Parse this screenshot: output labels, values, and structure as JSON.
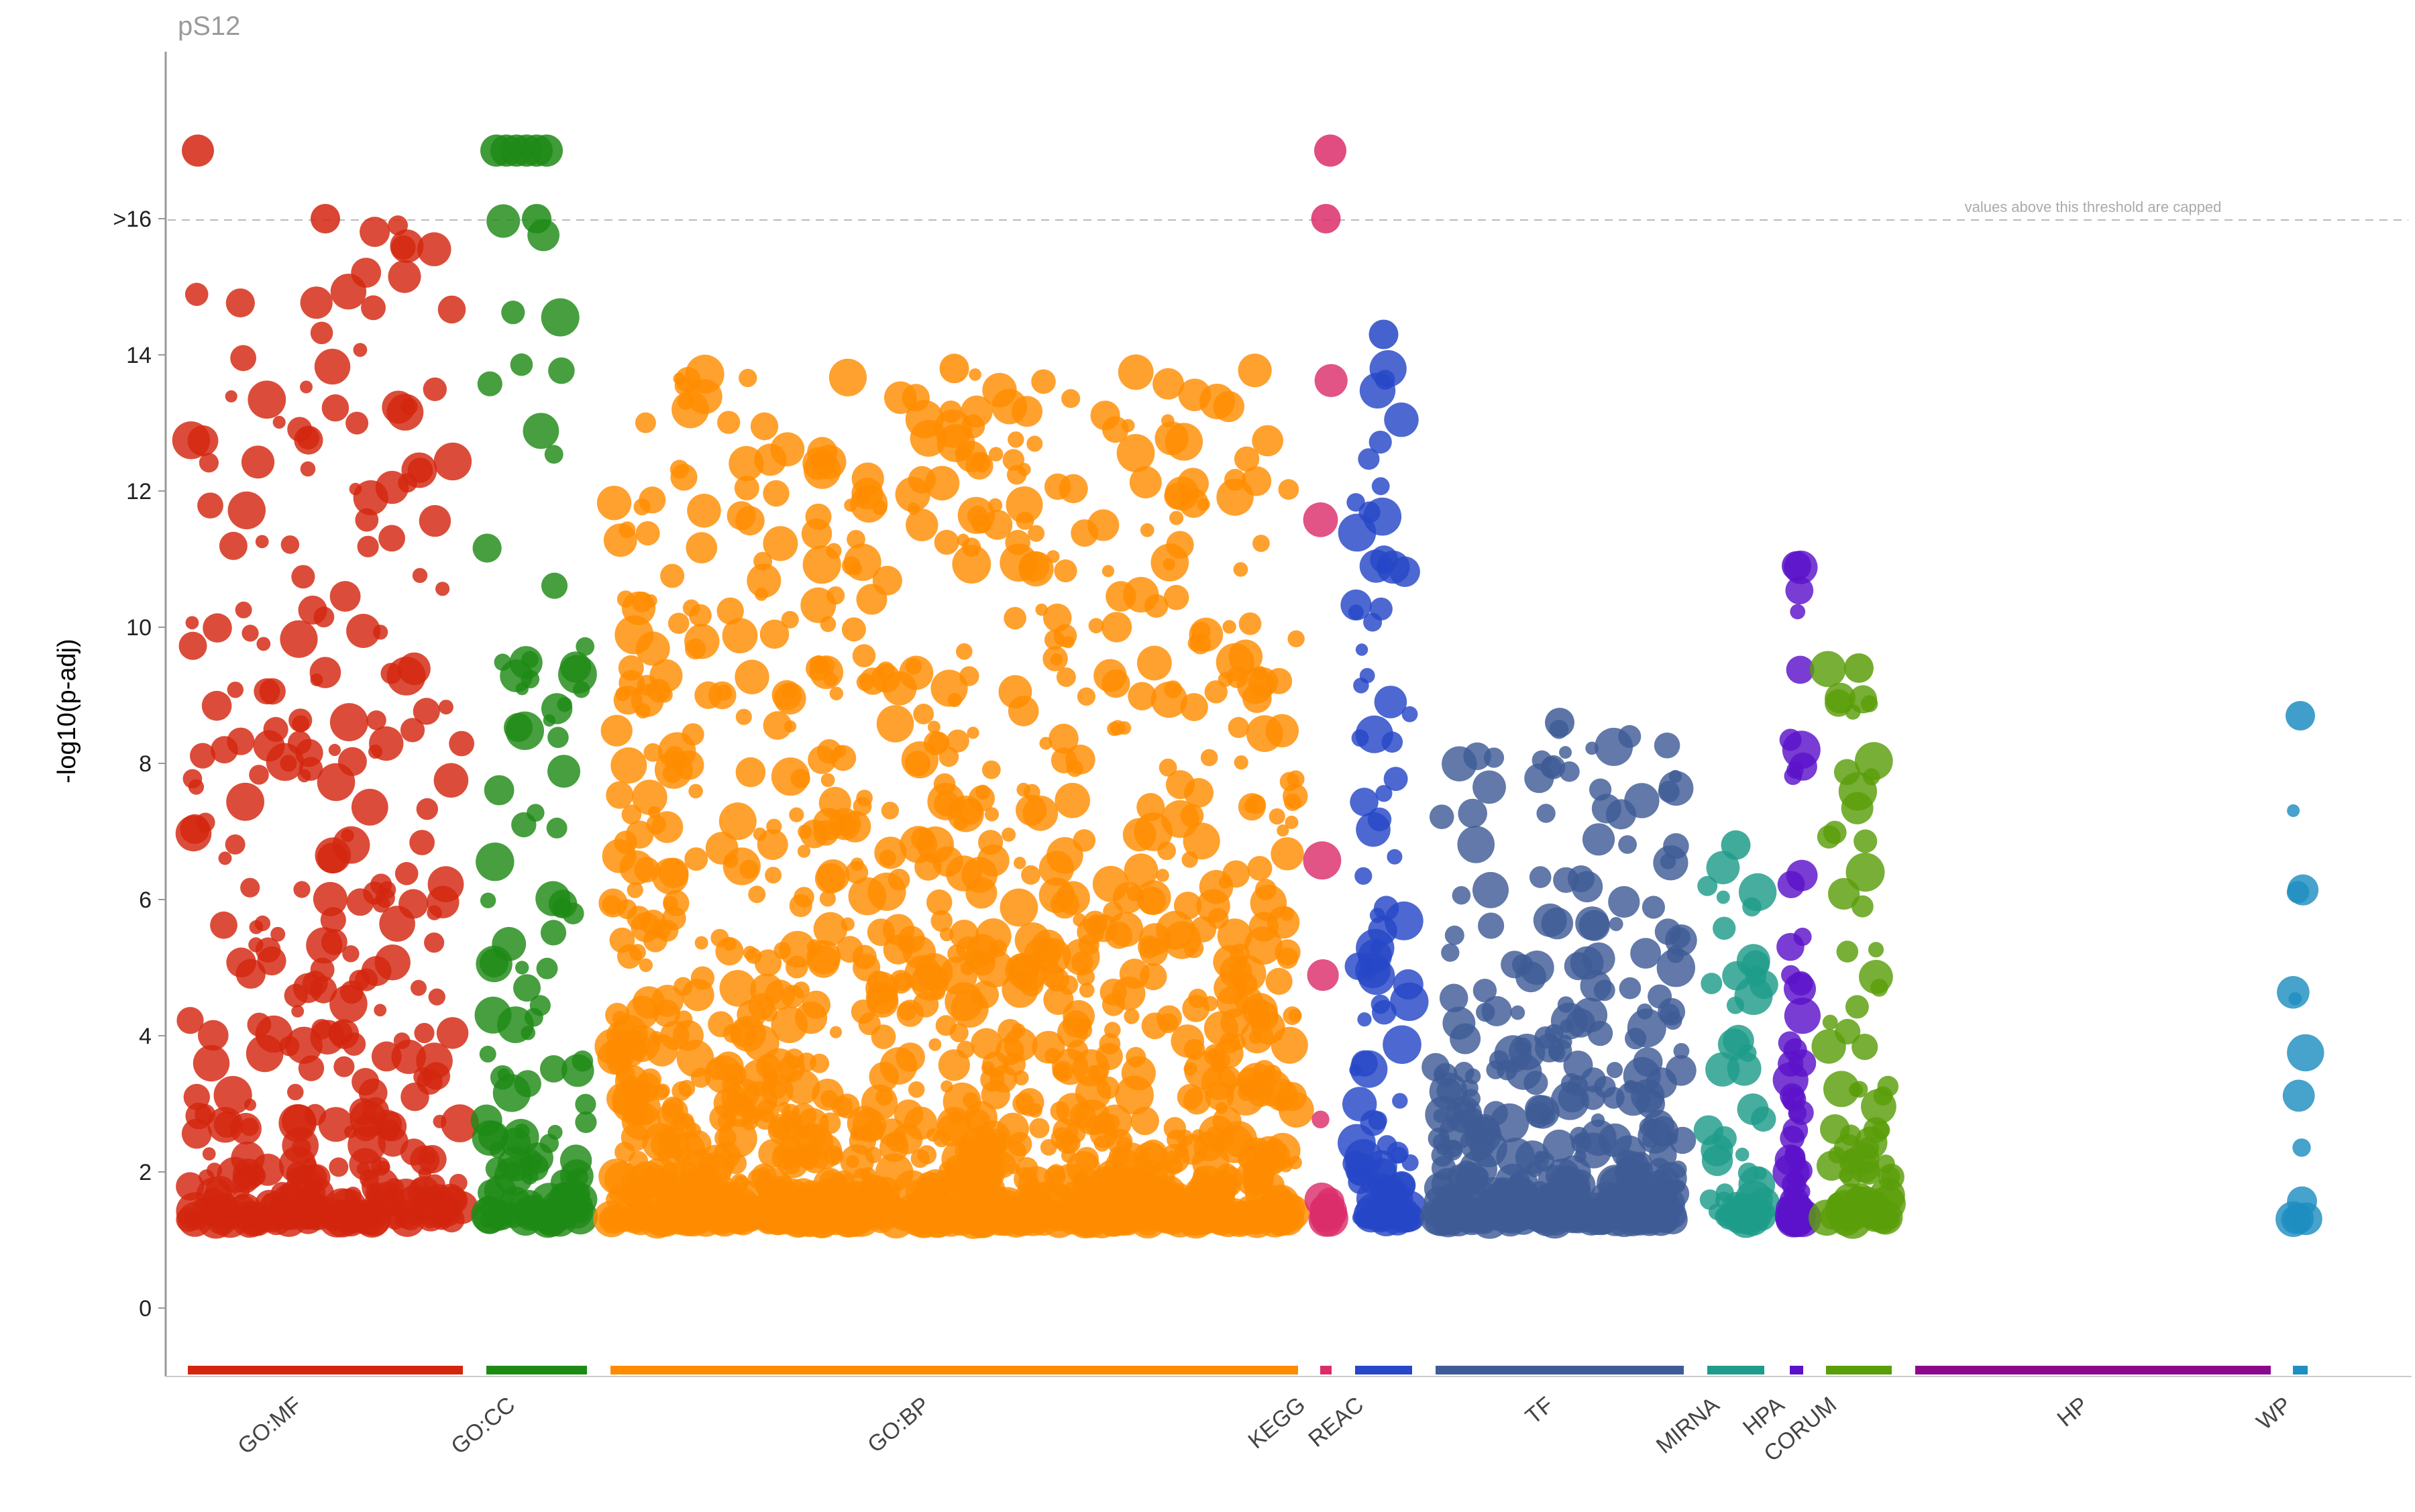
{
  "chart_data": {
    "type": "scatter",
    "title": "pS12",
    "ylabel": "-log10(p-adj)",
    "xlabel": "",
    "ylim": [
      -1,
      17.8
    ],
    "y_ticks": [
      {
        "value": 0,
        "label": "0"
      },
      {
        "value": 2,
        "label": "2"
      },
      {
        "value": 4,
        "label": "4"
      },
      {
        "value": 6,
        "label": "6"
      },
      {
        "value": 8,
        "label": "8"
      },
      {
        "value": 10,
        "label": "10"
      },
      {
        "value": 12,
        "label": "12"
      },
      {
        "value": 14,
        "label": "14"
      },
      {
        "value": 16,
        "label": ">16"
      }
    ],
    "cap_threshold": 16,
    "cap_note": "values above this threshold are capped",
    "capped_value_plotted_at": 17,
    "grid": false,
    "sources": [
      {
        "name": "GO:MF",
        "color": "#d3260f",
        "max": 17,
        "density": 1.0
      },
      {
        "name": "GO:CC",
        "color": "#1e8a16",
        "max": 17,
        "density": 0.9
      },
      {
        "name": "GO:BP",
        "color": "#ff8c00",
        "max": 13.8,
        "density": 1.6
      },
      {
        "name": "KEGG",
        "color": "#dc2d6b",
        "max": 17,
        "density": 0.6
      },
      {
        "name": "REAC",
        "color": "#2647c7",
        "max": 14.3,
        "density": 1.4
      },
      {
        "name": "TF",
        "color": "#3f5c96",
        "max": 8.6,
        "density": 1.2
      },
      {
        "name": "MIRNA",
        "color": "#1f9c8a",
        "max": 6.8,
        "density": 0.6
      },
      {
        "name": "HPA",
        "color": "#5b12c9",
        "max": 10.9,
        "density": 3.0
      },
      {
        "name": "CORUM",
        "color": "#5a9e0a",
        "max": 9.4,
        "density": 0.8
      },
      {
        "name": "HP",
        "color": "#8b0a8b",
        "max": 0,
        "density": 0
      },
      {
        "name": "WP",
        "color": "#1f8ec1",
        "max": 8.7,
        "density": 0.3
      }
    ]
  }
}
